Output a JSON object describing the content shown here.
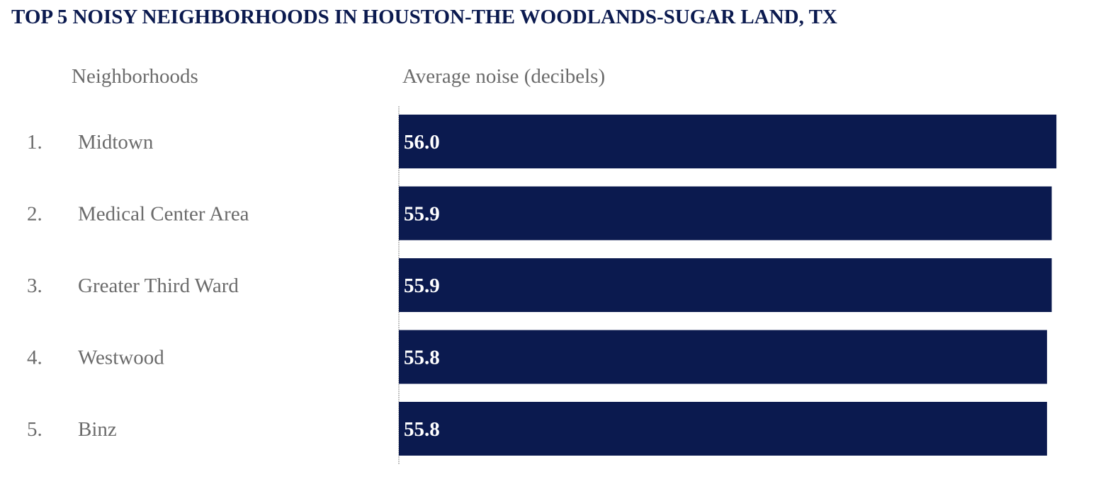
{
  "title": "TOP 5 NOISY NEIGHBORHOODS IN HOUSTON-THE WOODLANDS-SUGAR LAND, TX",
  "headers": {
    "neighborhoods": "Neighborhoods",
    "noise": "Average noise (decibels)"
  },
  "colors": {
    "bar": "#0b1a4f",
    "text": "#6b6b6b",
    "title": "#0b1a4f"
  },
  "chart_data": {
    "type": "bar",
    "orientation": "horizontal",
    "categories": [
      "Midtown",
      "Medical Center Area",
      "Greater Third Ward",
      "Westwood",
      "Binz"
    ],
    "ranks": [
      "1.",
      "2.",
      "3.",
      "4.",
      "5."
    ],
    "values": [
      56.0,
      55.9,
      55.9,
      55.8,
      55.8
    ],
    "value_labels": [
      "56.0",
      "55.9",
      "55.9",
      "55.8",
      "55.8"
    ],
    "title": "TOP 5 NOISY NEIGHBORHOODS IN HOUSTON-THE WOODLANDS-SUGAR LAND, TX",
    "xlabel": "Average noise (decibels)",
    "ylabel": "Neighborhoods",
    "grid": false
  }
}
